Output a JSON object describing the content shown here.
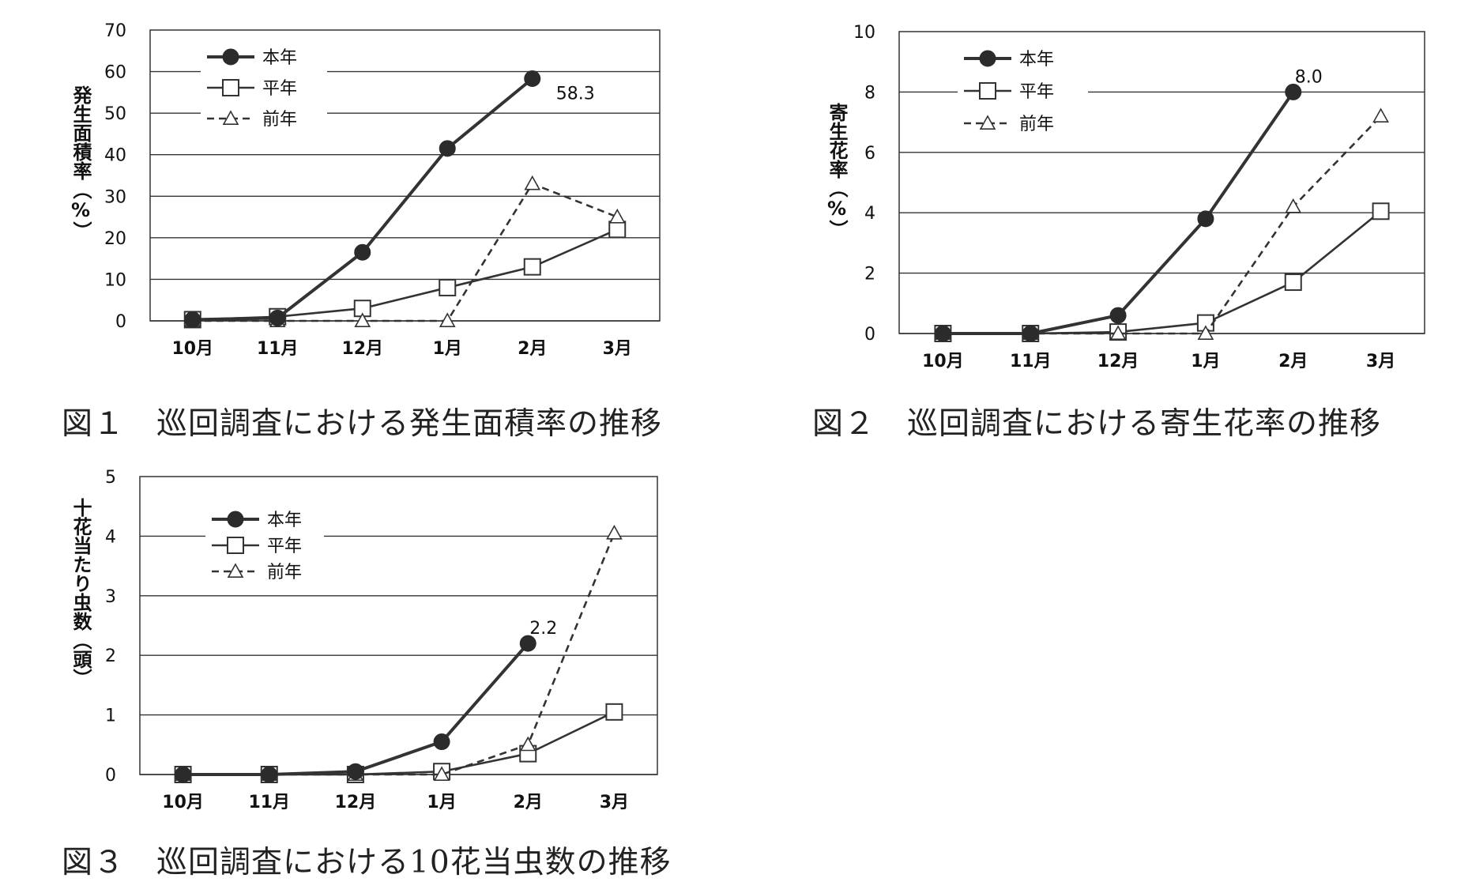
{
  "chart_data": [
    {
      "type": "line",
      "caption": "図１　巡回調査における発生面積率の推移",
      "ylabel": "発生面積率（%）",
      "categories": [
        "10月",
        "11月",
        "12月",
        "1月",
        "2月",
        "3月"
      ],
      "ylim": [
        0,
        70
      ],
      "yticks": [
        0,
        10,
        20,
        30,
        40,
        50,
        60,
        70
      ],
      "grid": true,
      "legend_position": "top-left",
      "series": [
        {
          "name": "本年",
          "marker": "circle",
          "style": "solid-bold",
          "values": [
            0.3,
            0.7,
            16.5,
            41.5,
            58.3,
            null
          ]
        },
        {
          "name": "平年",
          "marker": "square",
          "style": "solid",
          "values": [
            0.3,
            1.0,
            3.0,
            8.0,
            13.0,
            22.0
          ]
        },
        {
          "name": "前年",
          "marker": "triangle",
          "style": "dashed",
          "values": [
            0,
            0,
            0,
            0,
            33.0,
            25.0
          ]
        }
      ],
      "annotations": [
        {
          "text": "58.3",
          "series": 0,
          "index": 4
        }
      ]
    },
    {
      "type": "line",
      "caption": "図２　巡回調査における寄生花率の推移",
      "ylabel": "寄生花率（%）",
      "categories": [
        "10月",
        "11月",
        "12月",
        "1月",
        "2月",
        "3月"
      ],
      "ylim": [
        0,
        10
      ],
      "yticks": [
        0,
        2,
        4,
        6,
        8,
        10
      ],
      "grid": true,
      "legend_position": "top-left",
      "series": [
        {
          "name": "本年",
          "marker": "circle",
          "style": "solid-bold",
          "values": [
            0,
            0,
            0.6,
            3.8,
            8.0,
            null
          ]
        },
        {
          "name": "平年",
          "marker": "square",
          "style": "solid",
          "values": [
            0,
            0,
            0.05,
            0.35,
            1.7,
            4.05
          ]
        },
        {
          "name": "前年",
          "marker": "triangle",
          "style": "dashed",
          "values": [
            0,
            0,
            0,
            0,
            4.2,
            7.2
          ]
        }
      ],
      "annotations": [
        {
          "text": "8.0",
          "series": 0,
          "index": 4
        }
      ]
    },
    {
      "type": "line",
      "caption": "図３　巡回調査における10花当虫数の推移",
      "ylabel": "十花当たり虫数（頭）",
      "categories": [
        "10月",
        "11月",
        "12月",
        "1月",
        "2月",
        "3月"
      ],
      "ylim": [
        0,
        5
      ],
      "yticks": [
        0,
        1,
        2,
        3,
        4,
        5
      ],
      "grid": true,
      "legend_position": "top-left",
      "series": [
        {
          "name": "本年",
          "marker": "circle",
          "style": "solid-bold",
          "values": [
            0,
            0,
            0.05,
            0.55,
            2.2,
            null
          ]
        },
        {
          "name": "平年",
          "marker": "square",
          "style": "solid",
          "values": [
            0,
            0,
            0,
            0.05,
            0.35,
            1.05
          ]
        },
        {
          "name": "前年",
          "marker": "triangle",
          "style": "dashed",
          "values": [
            0,
            0,
            0,
            0,
            0.5,
            4.05
          ]
        }
      ],
      "annotations": [
        {
          "text": "2.2",
          "series": 0,
          "index": 4
        }
      ]
    }
  ]
}
